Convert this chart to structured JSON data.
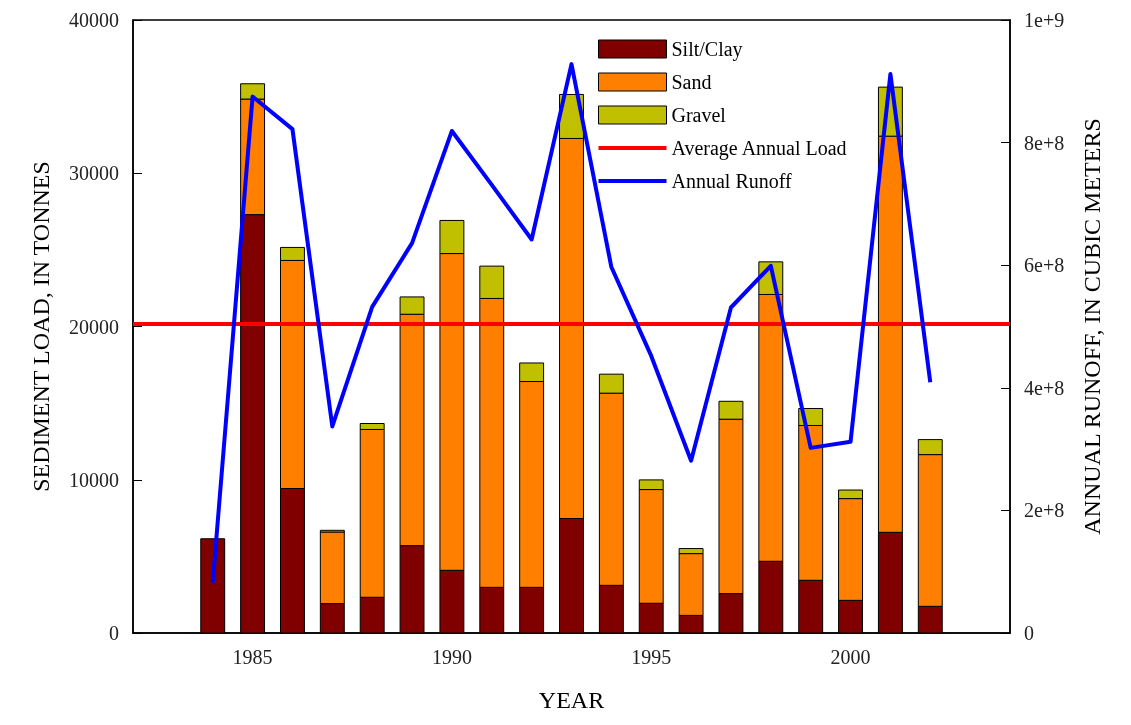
{
  "chart_data": {
    "type": "bar",
    "stacked": true,
    "xlabel": "YEAR",
    "ylabel": "SEDIMENT LOAD, IN TONNES",
    "y2label": "ANNUAL RUNOFF, IN CUBIC METERS",
    "x": [
      1984,
      1985,
      1986,
      1987,
      1988,
      1989,
      1990,
      1991,
      1992,
      1993,
      1994,
      1995,
      1996,
      1997,
      1998,
      1999,
      2000,
      2001,
      2002
    ],
    "series": [
      {
        "name": "Silt/Clay",
        "color": "#800000",
        "values": [
          6150,
          27300,
          9430,
          1920,
          2330,
          5700,
          4090,
          2980,
          2980,
          7470,
          3110,
          1940,
          1150,
          2570,
          4680,
          3440,
          2130,
          6570,
          1740
        ]
      },
      {
        "name": "Sand",
        "color": "#ff8000",
        "values": [
          null,
          7540,
          14880,
          4670,
          10950,
          15100,
          20670,
          18850,
          13430,
          24800,
          12540,
          7420,
          4030,
          11380,
          17410,
          10100,
          6640,
          25850,
          9900
        ]
      },
      {
        "name": "Gravel",
        "color": "#c0c000",
        "values": [
          null,
          1000,
          850,
          110,
          390,
          1130,
          2160,
          2110,
          1210,
          2870,
          1240,
          630,
          330,
          1170,
          2130,
          1110,
          560,
          3200,
          980
        ]
      },
      {
        "name": "Annual Runoff",
        "type": "line",
        "axis": "y2",
        "color": "#0000ff",
        "values": [
          82000000,
          875000000,
          822000000,
          337000000,
          532000000,
          636000000,
          819000000,
          731000000,
          642000000,
          928000000,
          597000000,
          452000000,
          281000000,
          531000000,
          599000000,
          302000000,
          312000000,
          912000000,
          409000000
        ]
      }
    ],
    "ref_lines": [
      {
        "axis": "y",
        "value": 20200,
        "label": "Average Annual Load",
        "color": "#ff0000"
      }
    ],
    "xlim": [
      1982,
      2004
    ],
    "xticks": [
      1985,
      1990,
      1995,
      2000
    ],
    "ylim": [
      0,
      40000
    ],
    "yticks": [
      0,
      10000,
      20000,
      30000,
      40000
    ],
    "y2lim": [
      0,
      1000000000
    ],
    "y2ticks": [
      0,
      {
        "value": 200000000,
        "label": "2e+8"
      },
      {
        "value": 400000000,
        "label": "4e+8"
      },
      {
        "value": 600000000,
        "label": "6e+8"
      },
      {
        "value": 800000000,
        "label": "8e+8"
      },
      {
        "value": 1000000000,
        "label": "1e+9"
      }
    ],
    "grid": false,
    "legend": "top"
  }
}
